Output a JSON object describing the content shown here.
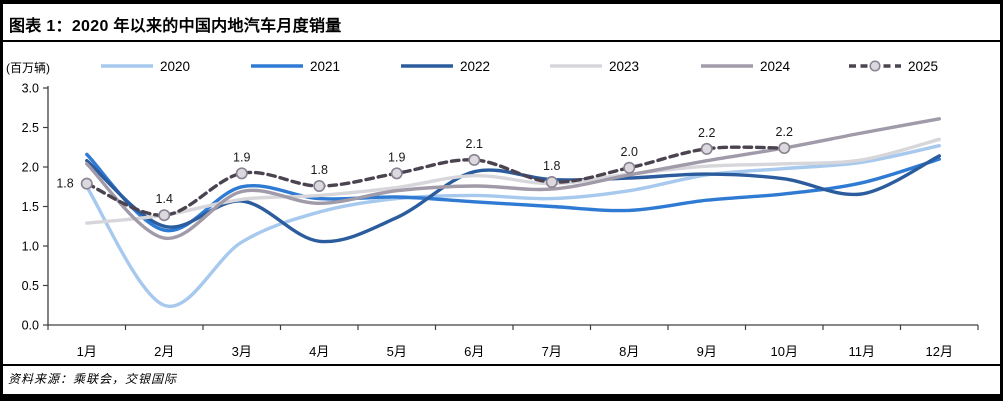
{
  "header": {
    "title": "图表 1：2020 年以来的中国内地汽车月度销量"
  },
  "chart_data": {
    "type": "line",
    "title": "图表 1：2020 年以来的中国内地汽车月度销量",
    "unit_label": "(百万辆)",
    "xlabel": "",
    "ylabel": "(百万辆)",
    "ylim": [
      0,
      3.0
    ],
    "y_tick_labels": [
      "3.0",
      "2.5",
      "2.0",
      "1.5",
      "1.0",
      "0.5",
      "0.0"
    ],
    "x_categories": [
      "1月",
      "2月",
      "3月",
      "4月",
      "5月",
      "6月",
      "7月",
      "8月",
      "9月",
      "10月",
      "11月",
      "12月"
    ],
    "grid": false,
    "legend_position": "top",
    "axis_color": "#404040",
    "series": [
      {
        "name": "2020",
        "color": "#A7C9EE",
        "style": "solid",
        "values": [
          1.75,
          0.25,
          1.05,
          1.43,
          1.6,
          1.64,
          1.6,
          1.7,
          1.9,
          1.98,
          2.06,
          2.27
        ]
      },
      {
        "name": "2021",
        "color": "#2F7BD3",
        "style": "solid",
        "values": [
          2.16,
          1.2,
          1.75,
          1.6,
          1.62,
          1.56,
          1.5,
          1.45,
          1.58,
          1.66,
          1.8,
          2.1
        ]
      },
      {
        "name": "2022",
        "color": "#2B5C9D",
        "style": "solid",
        "values": [
          2.08,
          1.25,
          1.57,
          1.06,
          1.36,
          1.94,
          1.84,
          1.86,
          1.91,
          1.85,
          1.66,
          2.14
        ]
      },
      {
        "name": "2023",
        "color": "#D7D6DB",
        "style": "solid",
        "values": [
          1.29,
          1.39,
          1.59,
          1.64,
          1.74,
          1.89,
          1.79,
          1.91,
          2.01,
          2.04,
          2.09,
          2.35
        ]
      },
      {
        "name": "2024",
        "color": "#A09AA9",
        "style": "solid",
        "values": [
          2.04,
          1.1,
          1.69,
          1.54,
          1.7,
          1.76,
          1.72,
          1.9,
          2.08,
          2.24,
          2.43,
          2.61
        ]
      },
      {
        "name": "2025",
        "color": "#4B4450",
        "style": "dashed",
        "marker": {
          "fill": "#DBD8DE",
          "stroke": "#8A8292"
        },
        "values": [
          1.79,
          1.39,
          1.92,
          1.76,
          1.92,
          2.09,
          1.81,
          1.99,
          2.23,
          2.24
        ],
        "point_labels": [
          "1.8",
          "1.4",
          "1.9",
          "1.8",
          "1.9",
          "2.1",
          "1.8",
          "2.0",
          "2.2",
          "2.2"
        ]
      }
    ]
  },
  "source": {
    "text": "资料来源：乘联会，交银国际"
  }
}
